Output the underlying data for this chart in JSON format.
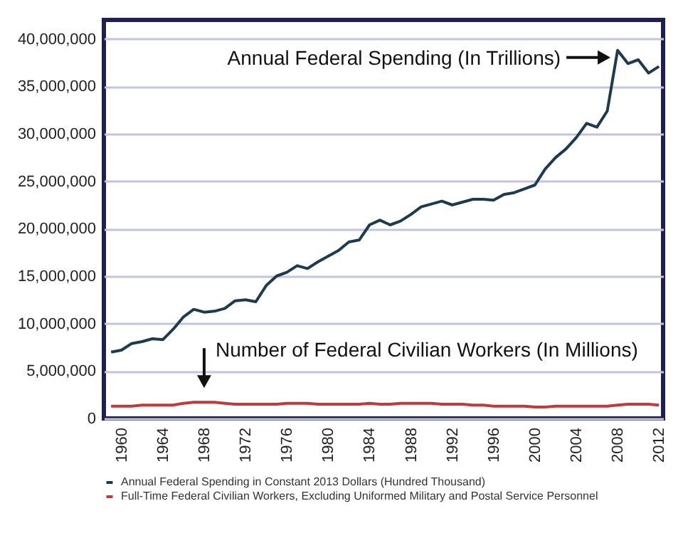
{
  "chart_data": {
    "type": "line",
    "x": [
      1959,
      1960,
      1961,
      1962,
      1963,
      1964,
      1965,
      1966,
      1967,
      1968,
      1969,
      1970,
      1971,
      1972,
      1973,
      1974,
      1975,
      1976,
      1977,
      1978,
      1979,
      1980,
      1981,
      1982,
      1983,
      1984,
      1985,
      1986,
      1987,
      1988,
      1989,
      1990,
      1991,
      1992,
      1993,
      1994,
      1995,
      1996,
      1997,
      1998,
      1999,
      2000,
      2001,
      2002,
      2003,
      2004,
      2005,
      2006,
      2007,
      2008,
      2009,
      2010,
      2011,
      2012
    ],
    "series": [
      {
        "name": "Annual Federal Spending in Constant 2013 Dollars (Hundred Thousand)",
        "color": "#1e3a4f",
        "values": [
          7000000,
          7200000,
          7900000,
          8100000,
          8400000,
          8300000,
          9400000,
          10700000,
          11500000,
          11200000,
          11300000,
          11600000,
          12400000,
          12500000,
          12300000,
          14000000,
          15000000,
          15400000,
          16100000,
          15800000,
          16500000,
          17100000,
          17700000,
          18600000,
          18800000,
          20400000,
          20900000,
          20400000,
          20800000,
          21500000,
          22300000,
          22600000,
          22900000,
          22500000,
          22800000,
          23100000,
          23100000,
          23000000,
          23600000,
          23800000,
          24200000,
          24600000,
          26300000,
          27500000,
          28400000,
          29600000,
          31100000,
          30700000,
          32400000,
          38800000,
          37400000,
          37800000,
          36400000,
          37100000
        ]
      },
      {
        "name": "Full-Time Federal Civilian Workers, Excluding Uniformed Military and Postal Service Personnel",
        "color": "#c0393b",
        "values": [
          1300000,
          1300000,
          1300000,
          1400000,
          1400000,
          1400000,
          1400000,
          1600000,
          1700000,
          1700000,
          1700000,
          1600000,
          1500000,
          1500000,
          1500000,
          1500000,
          1500000,
          1600000,
          1600000,
          1600000,
          1500000,
          1500000,
          1500000,
          1500000,
          1500000,
          1600000,
          1500000,
          1500000,
          1600000,
          1600000,
          1600000,
          1600000,
          1500000,
          1500000,
          1500000,
          1400000,
          1400000,
          1300000,
          1300000,
          1300000,
          1300000,
          1200000,
          1200000,
          1300000,
          1300000,
          1300000,
          1300000,
          1300000,
          1300000,
          1400000,
          1500000,
          1500000,
          1500000,
          1400000
        ]
      }
    ],
    "xlim": [
      1958.3,
      2012.4
    ],
    "xticks": [
      1960,
      1964,
      1968,
      1972,
      1976,
      1980,
      1984,
      1988,
      1992,
      1996,
      2000,
      2004,
      2008,
      2012
    ],
    "ylim": [
      0,
      42000000
    ],
    "yticks": [
      {
        "value": 0,
        "label": "0"
      },
      {
        "value": 5000000,
        "label": "5,000,000"
      },
      {
        "value": 10000000,
        "label": "10,000,000"
      },
      {
        "value": 15000000,
        "label": "15,000,000"
      },
      {
        "value": 20000000,
        "label": "20,000,000"
      },
      {
        "value": 25000000,
        "label": "25,000,000"
      },
      {
        "value": 30000000,
        "label": "30,000,000"
      },
      {
        "value": 35000000,
        "label": "35,000,000"
      },
      {
        "value": 40000000,
        "label": "40,000,000"
      }
    ],
    "grid": "y",
    "legend": "bottom",
    "annotations": [
      {
        "text": "Annual Federal Spending (In Trillions)",
        "x": 2008,
        "y": 38800000
      },
      {
        "text": "Number of Federal Civilian Workers (In Millions)",
        "x": 1968,
        "y": 1700000
      }
    ]
  }
}
